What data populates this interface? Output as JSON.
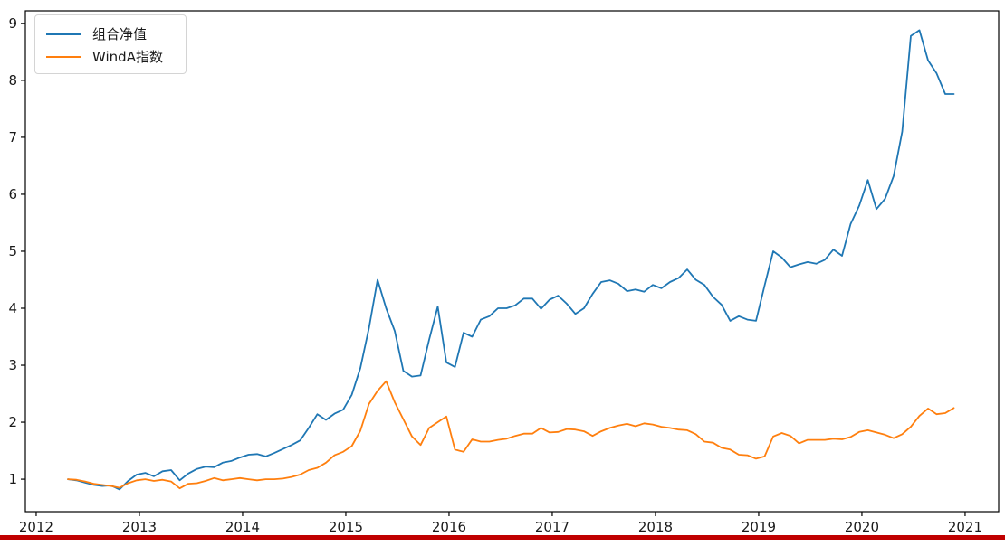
{
  "figure": {
    "background": "#ffffff",
    "footer_bar_color": "#c00000",
    "axis_color": "#000000",
    "tick_label_color": "#1a1a1a"
  },
  "legend": {
    "position": "upper-left",
    "items": [
      {
        "label": "组合净值",
        "color": "#1f77b4"
      },
      {
        "label": "WindA指数",
        "color": "#ff7f0e"
      }
    ]
  },
  "chart_data": {
    "type": "line",
    "title": "",
    "xlabel": "",
    "ylabel": "",
    "grid": false,
    "legend_position": "upper left",
    "x_tick_labels": [
      "2012",
      "2013",
      "2014",
      "2015",
      "2016",
      "2017",
      "2018",
      "2019",
      "2020",
      "2021"
    ],
    "x_tick_values": [
      2012,
      2013,
      2014,
      2015,
      2016,
      2017,
      2018,
      2019,
      2020,
      2021
    ],
    "y_tick_labels": [
      "1",
      "2",
      "3",
      "4",
      "5",
      "6",
      "7",
      "8",
      "9"
    ],
    "y_tick_values": [
      1,
      2,
      3,
      4,
      5,
      6,
      7,
      8,
      9
    ],
    "xlim": [
      2011.895,
      2021.325
    ],
    "ylim": [
      0.43,
      9.22
    ],
    "x_start": 2012.3077,
    "x_step": 0.0833333,
    "series": [
      {
        "name": "组合净值",
        "color": "#1f77b4",
        "values": [
          1.0,
          0.98,
          0.94,
          0.9,
          0.88,
          0.89,
          0.82,
          0.97,
          1.08,
          1.11,
          1.05,
          1.14,
          1.16,
          0.98,
          1.1,
          1.18,
          1.22,
          1.21,
          1.29,
          1.32,
          1.38,
          1.43,
          1.44,
          1.4,
          1.46,
          1.53,
          1.6,
          1.68,
          1.9,
          2.14,
          2.04,
          2.15,
          2.22,
          2.48,
          2.95,
          3.65,
          4.5,
          4.0,
          3.6,
          2.9,
          2.8,
          2.82,
          3.45,
          4.03,
          3.05,
          2.97,
          3.57,
          3.5,
          3.8,
          3.86,
          4.0,
          4.0,
          4.05,
          4.17,
          4.17,
          3.99,
          4.15,
          4.22,
          4.08,
          3.9,
          4.0,
          4.25,
          4.46,
          4.49,
          4.43,
          4.3,
          4.33,
          4.29,
          4.41,
          4.35,
          4.46,
          4.53,
          4.68,
          4.5,
          4.41,
          4.2,
          4.06,
          3.78,
          3.86,
          3.8,
          3.78,
          4.4,
          5.0,
          4.89,
          4.72,
          4.77,
          4.81,
          4.78,
          4.85,
          5.03,
          4.92,
          5.48,
          5.8,
          6.25,
          5.74,
          5.92,
          6.32,
          7.1,
          8.78,
          8.88,
          8.35,
          8.12,
          7.76,
          7.76
        ]
      },
      {
        "name": "WindA指数",
        "color": "#ff7f0e",
        "values": [
          1.0,
          0.99,
          0.96,
          0.92,
          0.9,
          0.88,
          0.85,
          0.93,
          0.98,
          1.0,
          0.97,
          0.99,
          0.96,
          0.84,
          0.92,
          0.93,
          0.97,
          1.02,
          0.98,
          1.0,
          1.02,
          1.0,
          0.98,
          1.0,
          1.0,
          1.01,
          1.04,
          1.08,
          1.16,
          1.2,
          1.29,
          1.42,
          1.48,
          1.58,
          1.85,
          2.32,
          2.55,
          2.72,
          2.35,
          2.05,
          1.75,
          1.6,
          1.9,
          2.0,
          2.1,
          1.52,
          1.48,
          1.7,
          1.66,
          1.66,
          1.69,
          1.71,
          1.76,
          1.8,
          1.8,
          1.9,
          1.82,
          1.83,
          1.88,
          1.87,
          1.84,
          1.76,
          1.84,
          1.9,
          1.94,
          1.97,
          1.93,
          1.98,
          1.96,
          1.92,
          1.9,
          1.87,
          1.86,
          1.79,
          1.66,
          1.64,
          1.55,
          1.52,
          1.43,
          1.42,
          1.36,
          1.4,
          1.75,
          1.81,
          1.76,
          1.63,
          1.69,
          1.69,
          1.69,
          1.71,
          1.7,
          1.74,
          1.83,
          1.86,
          1.82,
          1.78,
          1.72,
          1.79,
          1.92,
          2.11,
          2.24,
          2.14,
          2.16,
          2.25
        ]
      }
    ]
  }
}
